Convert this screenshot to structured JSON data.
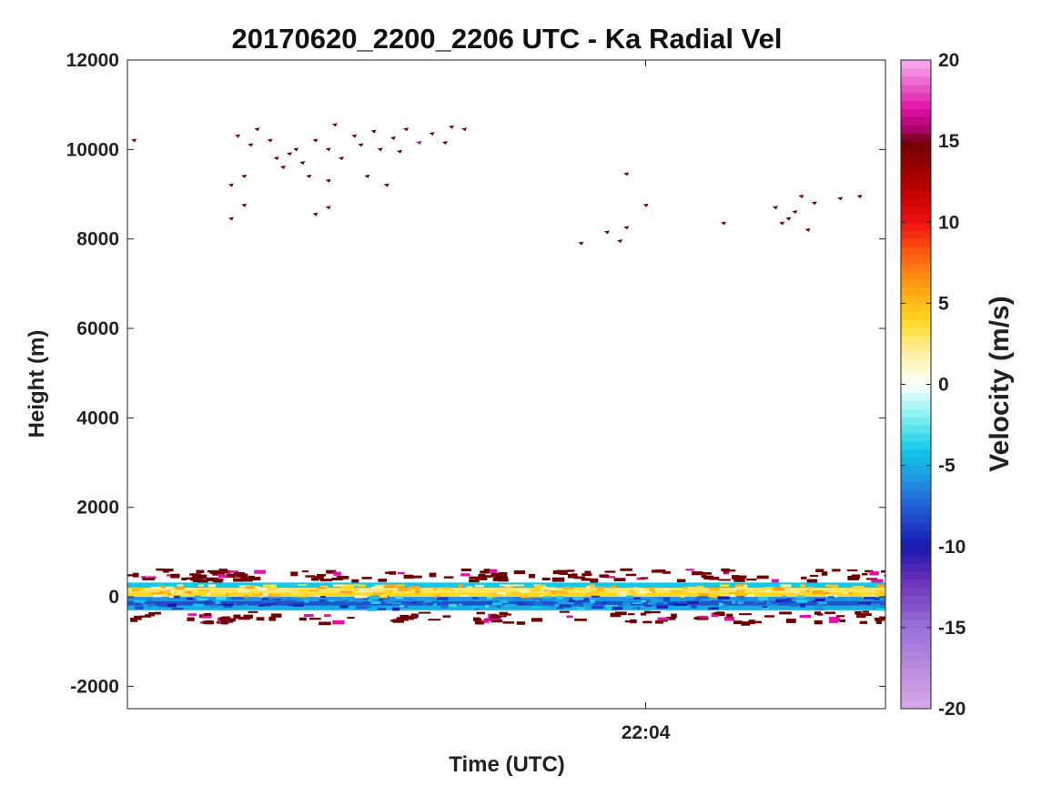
{
  "chart_data": {
    "type": "heatmap",
    "title": "20170620_2200_2206 UTC - Ka Radial Vel",
    "xlabel": "Time (UTC)",
    "ylabel": "Height (m)",
    "x_tick_labels": [
      "22:04"
    ],
    "x_tick_positions_min": [
      4
    ],
    "xlim_min": [
      0,
      5.85
    ],
    "ylim": [
      -2500,
      12000
    ],
    "y_ticks": [
      -2000,
      0,
      2000,
      4000,
      6000,
      8000,
      10000,
      12000
    ],
    "y_tick_labels": [
      "-2000",
      "0",
      "2000",
      "4000",
      "6000",
      "8000",
      "10000",
      "12000"
    ],
    "grid": false,
    "colorbar": {
      "label": "Velocity (m/s)",
      "range": [
        -20,
        20
      ],
      "ticks": [
        -20,
        -15,
        -10,
        -5,
        0,
        5,
        10,
        15,
        20
      ],
      "tick_labels": [
        "-20",
        "-15",
        "-10",
        "-5",
        "0",
        "5",
        "10",
        "15",
        "20"
      ],
      "colormap_stops": [
        {
          "v": -20,
          "color": "#d8a8e8"
        },
        {
          "v": -15,
          "color": "#9a70d8"
        },
        {
          "v": -12,
          "color": "#6830b8"
        },
        {
          "v": -10,
          "color": "#1818b0"
        },
        {
          "v": -8,
          "color": "#2050d0"
        },
        {
          "v": -6,
          "color": "#2090e0"
        },
        {
          "v": -4,
          "color": "#10c8e8"
        },
        {
          "v": -2,
          "color": "#80f0f0"
        },
        {
          "v": 0,
          "color": "#ffffff"
        },
        {
          "v": 2,
          "color": "#fff0a0"
        },
        {
          "v": 4,
          "color": "#ffd820"
        },
        {
          "v": 6,
          "color": "#ffa010"
        },
        {
          "v": 8,
          "color": "#ff6010"
        },
        {
          "v": 10,
          "color": "#f01010"
        },
        {
          "v": 12,
          "color": "#c00000"
        },
        {
          "v": 15,
          "color": "#700000"
        },
        {
          "v": 15.5,
          "color": "#a0005a"
        },
        {
          "v": 17,
          "color": "#e010a8"
        },
        {
          "v": 20,
          "color": "#f8b0f0"
        }
      ]
    },
    "layers": [
      {
        "height_m": 600,
        "velocity_ms": 0,
        "note": ""
      },
      {
        "height_from_m": 300,
        "height_to_m": 200,
        "velocity_ms": -4
      },
      {
        "height_from_m": 200,
        "height_to_m": 100,
        "velocity_ms": 3
      },
      {
        "height_from_m": 100,
        "height_to_m": 0,
        "velocity_ms": 4
      },
      {
        "height_from_m": 0,
        "height_to_m": -100,
        "velocity_ms": -6
      },
      {
        "height_from_m": -100,
        "height_to_m": -200,
        "velocity_ms": -8
      },
      {
        "height_from_m": -200,
        "height_to_m": -300,
        "velocity_ms": -5
      }
    ],
    "scatter_points_min_m_ms": [
      [
        0.05,
        10200,
        15
      ],
      [
        0.85,
        10300,
        15
      ],
      [
        0.95,
        10100,
        15
      ],
      [
        1.0,
        10450,
        15
      ],
      [
        1.1,
        10200,
        15
      ],
      [
        1.15,
        9800,
        15
      ],
      [
        1.25,
        9900,
        15
      ],
      [
        1.3,
        10000,
        15
      ],
      [
        1.35,
        9700,
        15
      ],
      [
        1.45,
        10200,
        15
      ],
      [
        1.55,
        10000,
        15
      ],
      [
        1.6,
        10550,
        15
      ],
      [
        1.65,
        9800,
        15
      ],
      [
        1.75,
        10300,
        15
      ],
      [
        1.8,
        10100,
        15
      ],
      [
        1.9,
        10400,
        15
      ],
      [
        1.95,
        10000,
        15
      ],
      [
        2.05,
        10250,
        15
      ],
      [
        2.1,
        9950,
        15
      ],
      [
        2.15,
        10450,
        15
      ],
      [
        2.25,
        10150,
        16
      ],
      [
        2.35,
        10350,
        15
      ],
      [
        2.45,
        10150,
        15
      ],
      [
        2.5,
        10500,
        15
      ],
      [
        2.6,
        10450,
        15
      ],
      [
        1.2,
        9600,
        15
      ],
      [
        1.4,
        9400,
        15
      ],
      [
        0.9,
        9400,
        15
      ],
      [
        0.8,
        9200,
        15
      ],
      [
        1.55,
        9300,
        15
      ],
      [
        2.0,
        9200,
        15
      ],
      [
        1.85,
        9400,
        15
      ],
      [
        0.8,
        8450,
        15
      ],
      [
        0.9,
        8750,
        15
      ],
      [
        1.45,
        8550,
        15
      ],
      [
        1.55,
        8700,
        15
      ],
      [
        3.5,
        7900,
        15
      ],
      [
        3.7,
        8150,
        15
      ],
      [
        3.8,
        7950,
        15
      ],
      [
        3.85,
        8250,
        15
      ],
      [
        4.0,
        8750,
        15
      ],
      [
        3.85,
        9450,
        15
      ],
      [
        4.6,
        8350,
        15
      ],
      [
        5.0,
        8700,
        15
      ],
      [
        5.05,
        8350,
        15
      ],
      [
        5.15,
        8600,
        15
      ],
      [
        5.2,
        8950,
        15
      ],
      [
        5.3,
        8800,
        15
      ],
      [
        5.25,
        8200,
        15
      ],
      [
        5.5,
        8900,
        15
      ],
      [
        5.65,
        8950,
        15
      ],
      [
        5.1,
        8450,
        15
      ]
    ]
  }
}
